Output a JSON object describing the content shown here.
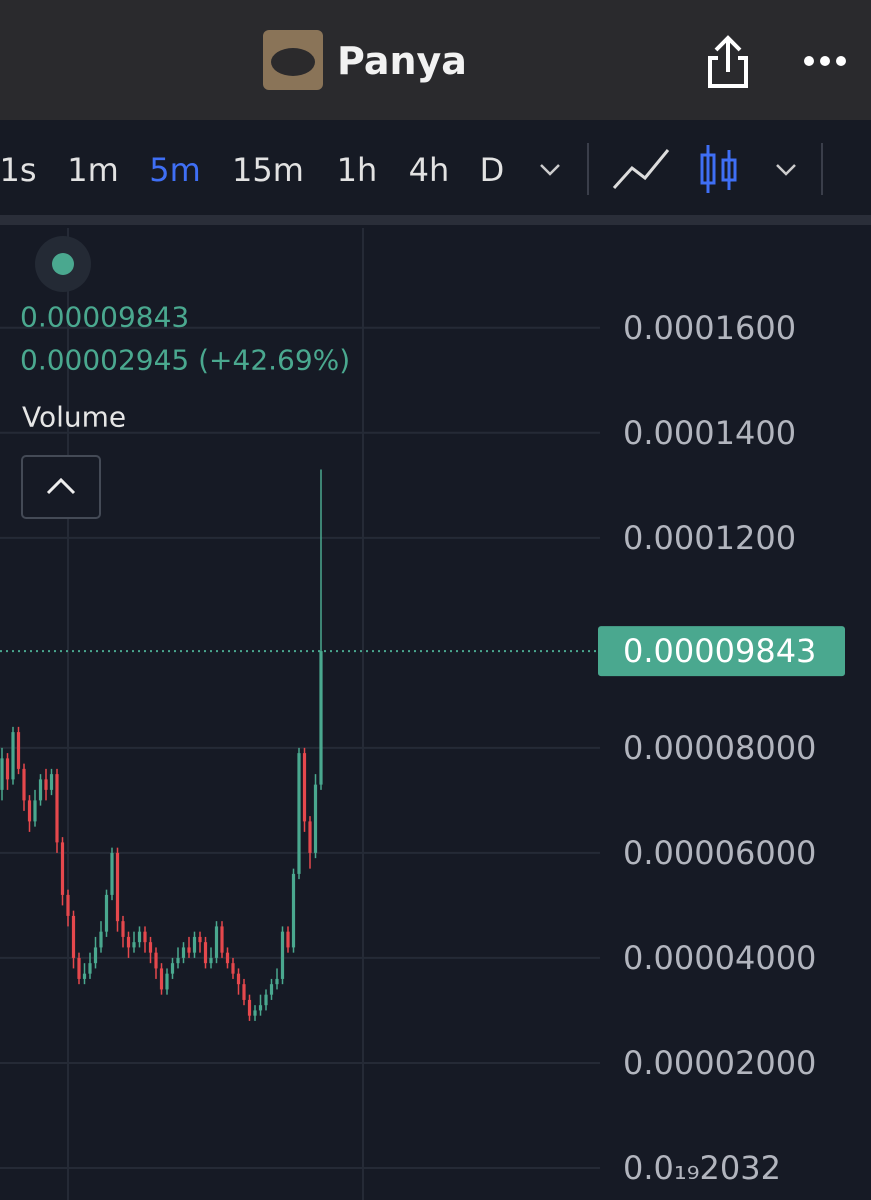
{
  "header": {
    "title": "Panya"
  },
  "toolbar": {
    "intervals": [
      "1s",
      "1m",
      "5m",
      "15m",
      "1h",
      "4h",
      "D"
    ],
    "active_interval": 2
  },
  "legend": {
    "change": "0.00002945 (+42.69%)",
    "volume_label": "Volume"
  },
  "chart_data": {
    "type": "candlestick",
    "open": [
      7.2e-05,
      7.8e-05,
      7.4e-05,
      8.3e-05,
      7.6e-05,
      7e-05,
      6.6e-05,
      7e-05,
      7.4e-05,
      7.2e-05,
      7.5e-05,
      6.2e-05,
      5.2e-05,
      4.8e-05,
      4e-05,
      3.6e-05,
      3.7e-05,
      3.9e-05,
      4.2e-05,
      4.5e-05,
      5.2e-05,
      6e-05,
      4.7e-05,
      4.4e-05,
      4.2e-05,
      4.3e-05,
      4.5e-05,
      4.3e-05,
      4.1e-05,
      3.8e-05,
      3.4e-05,
      3.7e-05,
      3.9e-05,
      4e-05,
      4.2e-05,
      4.1e-05,
      4.4e-05,
      4.3e-05,
      3.9e-05,
      4e-05,
      4.6e-05,
      4.1e-05,
      3.9e-05,
      3.7e-05,
      3.5e-05,
      3.2e-05,
      2.9e-05,
      3e-05,
      3.1e-05,
      3.3e-05,
      3.5e-05,
      3.6e-05,
      4.5e-05,
      4.2e-05,
      5.6e-05,
      7.9e-05,
      6.6e-05,
      6e-05,
      7.3e-05
    ],
    "high": [
      8e-05,
      7.9e-05,
      8.4e-05,
      8.4e-05,
      7.7e-05,
      7.1e-05,
      7.2e-05,
      7.5e-05,
      7.6e-05,
      7.6e-05,
      7.6e-05,
      6.3e-05,
      5.3e-05,
      4.9e-05,
      4.1e-05,
      3.9e-05,
      4.1e-05,
      4.4e-05,
      4.7e-05,
      5.3e-05,
      6.1e-05,
      6.1e-05,
      4.8e-05,
      4.5e-05,
      4.5e-05,
      4.6e-05,
      4.6e-05,
      4.4e-05,
      4.2e-05,
      3.9e-05,
      3.8e-05,
      4e-05,
      4.2e-05,
      4.3e-05,
      4.4e-05,
      4.5e-05,
      4.5e-05,
      4.4e-05,
      4.2e-05,
      4.7e-05,
      4.7e-05,
      4.2e-05,
      4e-05,
      3.8e-05,
      3.6e-05,
      3.3e-05,
      3.1e-05,
      3.3e-05,
      3.4e-05,
      3.6e-05,
      3.8e-05,
      4.6e-05,
      4.6e-05,
      5.7e-05,
      8e-05,
      8e-05,
      6.7e-05,
      7.5e-05,
      0.000133
    ],
    "low": [
      7e-05,
      7.2e-05,
      7.3e-05,
      7.5e-05,
      6.8e-05,
      6.4e-05,
      6.5e-05,
      6.9e-05,
      7e-05,
      7.1e-05,
      6e-05,
      5e-05,
      4.6e-05,
      3.8e-05,
      3.5e-05,
      3.5e-05,
      3.6e-05,
      3.8e-05,
      4.1e-05,
      4.4e-05,
      5.1e-05,
      4.5e-05,
      4.2e-05,
      4e-05,
      4.1e-05,
      4.2e-05,
      4.1e-05,
      3.9e-05,
      3.6e-05,
      3.3e-05,
      3.3e-05,
      3.6e-05,
      3.8e-05,
      3.9e-05,
      4e-05,
      4e-05,
      4.1e-05,
      3.8e-05,
      3.8e-05,
      3.9e-05,
      4e-05,
      3.8e-05,
      3.6e-05,
      3.3e-05,
      3.1e-05,
      2.8e-05,
      2.8e-05,
      2.9e-05,
      3e-05,
      3.2e-05,
      3.4e-05,
      3.5e-05,
      4.1e-05,
      4.1e-05,
      5.5e-05,
      6.4e-05,
      5.7e-05,
      5.9e-05,
      7.2e-05
    ],
    "close": [
      7.8e-05,
      7.4e-05,
      8.3e-05,
      7.6e-05,
      7e-05,
      6.6e-05,
      7e-05,
      7.4e-05,
      7.2e-05,
      7.5e-05,
      6.2e-05,
      5.2e-05,
      4.8e-05,
      4e-05,
      3.6e-05,
      3.7e-05,
      3.9e-05,
      4.2e-05,
      4.5e-05,
      5.2e-05,
      6e-05,
      4.7e-05,
      4.4e-05,
      4.2e-05,
      4.3e-05,
      4.5e-05,
      4.3e-05,
      4.1e-05,
      3.8e-05,
      3.4e-05,
      3.7e-05,
      3.9e-05,
      4e-05,
      4.2e-05,
      4.1e-05,
      4.4e-05,
      4.3e-05,
      3.9e-05,
      4e-05,
      4.6e-05,
      4.1e-05,
      3.9e-05,
      3.7e-05,
      3.5e-05,
      3.2e-05,
      2.9e-05,
      3e-05,
      3.1e-05,
      3.3e-05,
      3.5e-05,
      3.6e-05,
      4.5e-05,
      4.2e-05,
      5.6e-05,
      7.9e-05,
      6.6e-05,
      6e-05,
      7.3e-05,
      9.843e-05
    ],
    "up_color": "#4aa88f",
    "down_color": "#e5484d",
    "last_price": 9.843e-05,
    "ylim": [
      -6.1e-06,
      0.000179
    ],
    "yticks": [
      {
        "value": 2.032e-20,
        "label": "0.0₁₉2032"
      },
      {
        "value": 2e-05,
        "label": "0.00002000"
      },
      {
        "value": 4e-05,
        "label": "0.00004000"
      },
      {
        "value": 6e-05,
        "label": "0.00006000"
      },
      {
        "value": 8e-05,
        "label": "0.00008000"
      },
      {
        "value": 0.00012,
        "label": "0.0001200"
      },
      {
        "value": 0.00014,
        "label": "0.0001400"
      },
      {
        "value": 0.00016,
        "label": "0.0001600"
      }
    ],
    "grid": true
  }
}
